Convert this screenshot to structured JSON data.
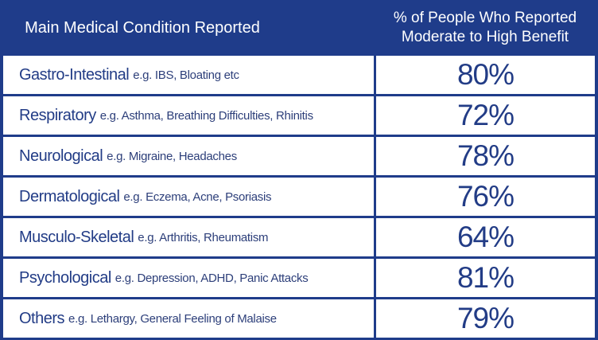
{
  "chart_data": {
    "type": "table",
    "columns": [
      "Main Medical Condition Reported",
      "% of People Who Reported Moderate to High Benefit"
    ],
    "header": {
      "condition": "Main Medical Condition Reported",
      "percent_line1": "% of People Who Reported",
      "percent_line2": "Moderate to High Benefit"
    },
    "rows": [
      {
        "condition": "Gastro-Intestinal",
        "examples": "e.g. IBS, Bloating etc",
        "value": 80,
        "label": "80%"
      },
      {
        "condition": "Respiratory",
        "examples": "e.g. Asthma, Breathing Difficulties, Rhinitis",
        "value": 72,
        "label": "72%"
      },
      {
        "condition": "Neurological",
        "examples": "e.g. Migraine, Headaches",
        "value": 78,
        "label": "78%"
      },
      {
        "condition": "Dermatological",
        "examples": "e.g. Eczema, Acne, Psoriasis",
        "value": 76,
        "label": "76%"
      },
      {
        "condition": "Musculo-Skeletal",
        "examples": "e.g. Arthritis, Rheumatism",
        "value": 64,
        "label": "64%"
      },
      {
        "condition": "Psychological",
        "examples": "e.g. Depression, ADHD, Panic Attacks",
        "value": 81,
        "label": "81%"
      },
      {
        "condition": "Others",
        "examples": "e.g. Lethargy, General Feeling of Malaise",
        "value": 79,
        "label": "79%"
      }
    ]
  },
  "colors": {
    "header_background": "#1f3c8a",
    "cell_background": "#ffffff",
    "text_primary": "#223c86"
  }
}
